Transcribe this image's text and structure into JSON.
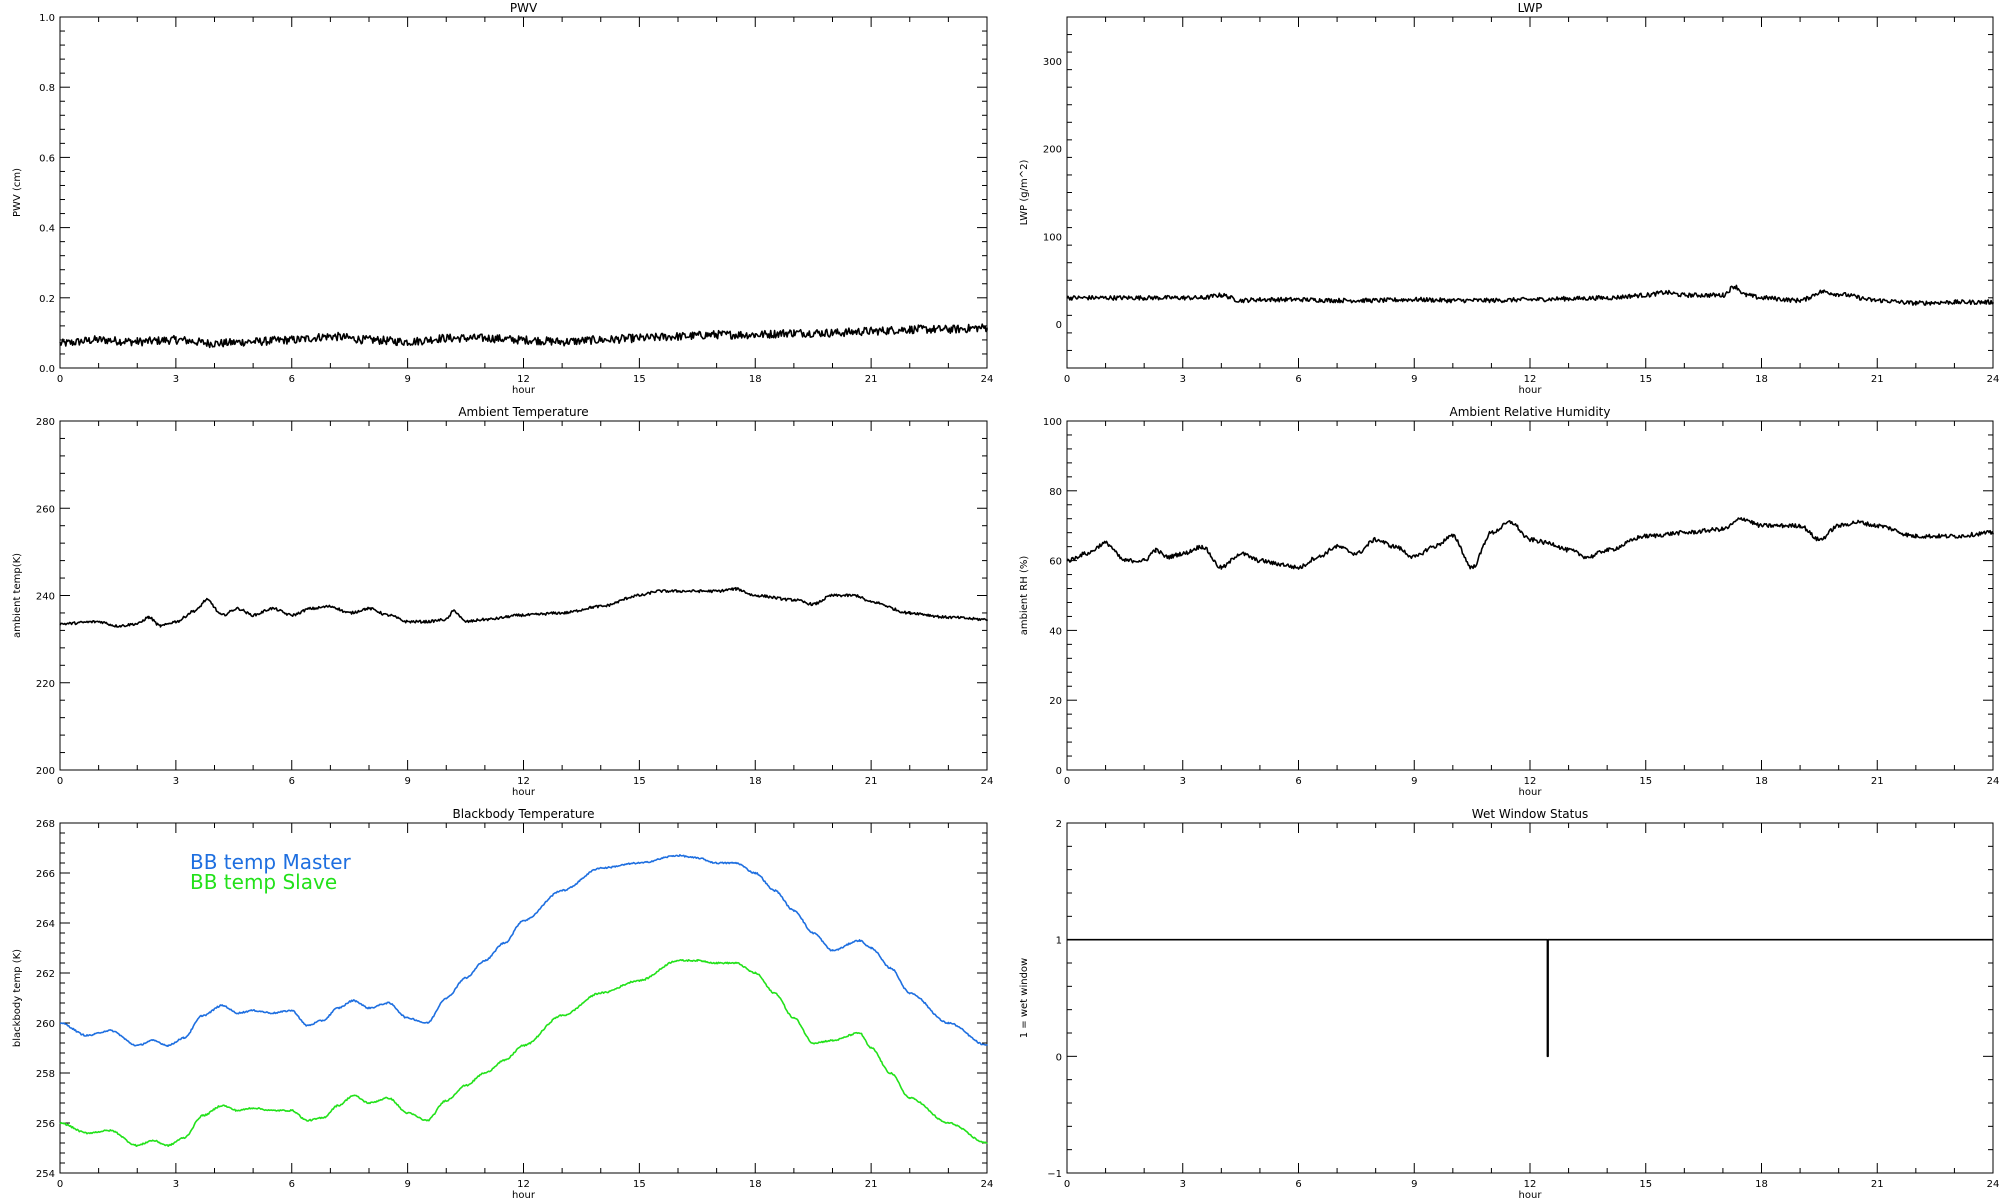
{
  "chart_data": [
    {
      "type": "line",
      "title": "PWV",
      "xlabel": "hour",
      "ylabel": "PWV (cm)",
      "xlim": [
        0,
        24
      ],
      "ylim": [
        0.0,
        1.0
      ],
      "xticks": [
        "0",
        "3",
        "6",
        "9",
        "12",
        "15",
        "18",
        "21",
        "24"
      ],
      "yticks": [
        "0.0",
        "0.2",
        "0.4",
        "0.6",
        "0.8",
        "1.0"
      ],
      "ytick_values": [
        0.0,
        0.2,
        0.4,
        0.6,
        0.8,
        1.0
      ],
      "series": [
        {
          "color": "#000000",
          "x": [
            0,
            1,
            2,
            3,
            4,
            5,
            6,
            7,
            8,
            9,
            10,
            11,
            12,
            13,
            14,
            15,
            16,
            17,
            18,
            19,
            20,
            21,
            22,
            23,
            24
          ],
          "y": [
            0.07,
            0.08,
            0.075,
            0.08,
            0.07,
            0.075,
            0.08,
            0.09,
            0.08,
            0.075,
            0.085,
            0.085,
            0.08,
            0.075,
            0.08,
            0.085,
            0.09,
            0.095,
            0.095,
            0.1,
            0.1,
            0.105,
            0.11,
            0.11,
            0.115
          ],
          "noise": 0.012
        }
      ]
    },
    {
      "type": "line",
      "title": "LWP",
      "xlabel": "hour",
      "ylabel": "LWP (g/m^2)",
      "xlim": [
        0,
        24
      ],
      "ylim": [
        -50,
        350
      ],
      "xticks": [
        "0",
        "3",
        "6",
        "9",
        "12",
        "15",
        "18",
        "21",
        "24"
      ],
      "yticks": [
        "0",
        "100",
        "200",
        "300"
      ],
      "ytick_values": [
        0,
        100,
        200,
        300
      ],
      "series": [
        {
          "color": "#000000",
          "x": [
            0,
            1,
            2,
            3,
            3.5,
            4,
            4.5,
            5,
            6,
            7,
            8,
            9,
            10,
            11,
            12,
            13,
            14,
            15,
            15.5,
            16,
            17,
            17.3,
            17.6,
            18,
            19,
            19.6,
            20,
            21,
            22,
            23,
            24
          ],
          "y": [
            30,
            30,
            30,
            30,
            30,
            33,
            27,
            28,
            28,
            27,
            27,
            28,
            27,
            27,
            28,
            29,
            30,
            33,
            36,
            33,
            33,
            43,
            33,
            30,
            27,
            37,
            34,
            27,
            24,
            25,
            25
          ],
          "noise": 2.5
        }
      ]
    },
    {
      "type": "line",
      "title": "Ambient Temperature",
      "xlabel": "hour",
      "ylabel": "ambient temp(K)",
      "xlim": [
        0,
        24
      ],
      "ylim": [
        200,
        280
      ],
      "xticks": [
        "0",
        "3",
        "6",
        "9",
        "12",
        "15",
        "18",
        "21",
        "24"
      ],
      "yticks": [
        "200",
        "220",
        "240",
        "260",
        "280"
      ],
      "ytick_values": [
        200,
        220,
        240,
        260,
        280
      ],
      "series": [
        {
          "color": "#000000",
          "x": [
            0,
            1,
            1.5,
            2,
            2.3,
            2.6,
            3,
            3.5,
            3.8,
            4.2,
            4.6,
            5,
            5.5,
            6,
            6.5,
            7,
            7.5,
            8,
            8.5,
            9,
            9.5,
            10,
            10.2,
            10.5,
            11,
            12,
            13,
            14,
            15,
            15.5,
            16,
            17,
            17.5,
            18,
            19,
            19.5,
            20,
            20.6,
            21,
            22,
            23,
            24
          ],
          "y": [
            233.5,
            234,
            233,
            233.5,
            235,
            233,
            234,
            236.5,
            239,
            235.5,
            237,
            235.5,
            237,
            235.5,
            237,
            237.5,
            236,
            237,
            235.5,
            234,
            234,
            234.5,
            236.5,
            234,
            234.5,
            235.5,
            236,
            237.5,
            240,
            241,
            241,
            241,
            241.5,
            240,
            239,
            238,
            240,
            240,
            238.5,
            236,
            235,
            234.5
          ],
          "noise": 0.3
        }
      ]
    },
    {
      "type": "line",
      "title": "Ambient Relative Humidity",
      "xlabel": "hour",
      "ylabel": "ambient RH (%)",
      "xlim": [
        0,
        24
      ],
      "ylim": [
        0,
        100
      ],
      "xticks": [
        "0",
        "3",
        "6",
        "9",
        "12",
        "15",
        "18",
        "21",
        "24"
      ],
      "yticks": [
        "0",
        "20",
        "40",
        "60",
        "80",
        "100"
      ],
      "ytick_values": [
        0,
        20,
        40,
        60,
        80,
        100
      ],
      "series": [
        {
          "color": "#000000",
          "x": [
            0,
            0.5,
            1,
            1.5,
            2,
            2.3,
            2.6,
            3,
            3.5,
            4,
            4.5,
            5,
            5.5,
            6,
            6.5,
            7,
            7.5,
            8,
            8.5,
            9,
            9.5,
            10,
            10.5,
            11,
            11.5,
            12,
            12.5,
            13,
            13.5,
            14,
            15,
            16,
            17,
            17.5,
            18,
            19,
            19.5,
            20,
            20.5,
            21,
            22,
            23,
            24
          ],
          "y": [
            60,
            62,
            65,
            60,
            60,
            63,
            61,
            62,
            64,
            58,
            62,
            60,
            59,
            58,
            61,
            64,
            62,
            66,
            64,
            61,
            64,
            67,
            58,
            68,
            71,
            66,
            65,
            63,
            61,
            63,
            67,
            68,
            69,
            72,
            70,
            70,
            66,
            70,
            71,
            70,
            67,
            67,
            68
          ],
          "noise": 0.6
        }
      ]
    },
    {
      "type": "line",
      "title": "Blackbody Temperature",
      "xlabel": "hour",
      "ylabel": "blackbody temp (K)",
      "xlim": [
        0,
        24
      ],
      "ylim": [
        254,
        268
      ],
      "xticks": [
        "0",
        "3",
        "6",
        "9",
        "12",
        "15",
        "18",
        "21",
        "24"
      ],
      "yticks": [
        "254",
        "256",
        "258",
        "260",
        "262",
        "264",
        "266",
        "268"
      ],
      "ytick_values": [
        254,
        256,
        258,
        260,
        262,
        264,
        266,
        268
      ],
      "series": [
        {
          "name": "BB temp Master",
          "color": "#1e6fe0",
          "x": [
            0,
            0.7,
            1.3,
            2,
            2.4,
            2.8,
            3.2,
            3.7,
            4.2,
            4.6,
            5,
            5.5,
            6,
            6.4,
            6.8,
            7.2,
            7.6,
            8,
            8.5,
            9,
            9.5,
            10,
            10.5,
            11,
            11.5,
            12,
            13,
            14,
            15,
            16,
            16.5,
            17,
            17.5,
            18,
            18.5,
            19,
            19.5,
            20,
            20.7,
            21,
            21.5,
            22,
            23,
            24
          ],
          "y": [
            260,
            259.5,
            259.7,
            259.1,
            259.3,
            259.1,
            259.4,
            260.3,
            260.7,
            260.4,
            260.5,
            260.4,
            260.5,
            259.9,
            260.1,
            260.6,
            260.9,
            260.6,
            260.8,
            260.2,
            260.0,
            261.0,
            261.8,
            262.5,
            263.2,
            264.1,
            265.3,
            266.2,
            266.4,
            266.7,
            266.6,
            266.4,
            266.4,
            266.0,
            265.3,
            264.5,
            263.6,
            262.9,
            263.3,
            263.0,
            262.2,
            261.2,
            260.0,
            259.1
          ],
          "noise": 0.03
        },
        {
          "name": "BB temp Slave",
          "color": "#22e11a",
          "x": [
            0,
            0.7,
            1.3,
            2,
            2.4,
            2.8,
            3.2,
            3.7,
            4.2,
            4.6,
            5,
            5.5,
            6,
            6.4,
            6.8,
            7.2,
            7.6,
            8,
            8.5,
            9,
            9.5,
            10,
            10.5,
            11,
            11.5,
            12,
            13,
            14,
            15,
            16,
            16.5,
            17,
            17.5,
            18,
            18.5,
            19,
            19.5,
            20,
            20.7,
            21,
            21.5,
            22,
            23,
            24
          ],
          "y": [
            256,
            255.6,
            255.7,
            255.1,
            255.3,
            255.1,
            255.4,
            256.3,
            256.7,
            256.5,
            256.6,
            256.5,
            256.5,
            256.1,
            256.2,
            256.7,
            257.1,
            256.8,
            257.0,
            256.4,
            256.1,
            256.9,
            257.5,
            258.0,
            258.5,
            259.1,
            260.3,
            261.2,
            261.7,
            262.5,
            262.5,
            262.4,
            262.4,
            262.0,
            261.2,
            260.2,
            259.2,
            259.3,
            259.6,
            259.0,
            258.0,
            257.0,
            256.0,
            255.2
          ],
          "noise": 0.03
        }
      ]
    },
    {
      "type": "line",
      "title": "Wet Window Status",
      "xlabel": "hour",
      "ylabel": "1 = wet window",
      "xlim": [
        0,
        24
      ],
      "ylim": [
        -1,
        2
      ],
      "xticks": [
        "0",
        "3",
        "6",
        "9",
        "12",
        "15",
        "18",
        "21",
        "24"
      ],
      "yticks": [
        "−1",
        "0",
        "1",
        "2"
      ],
      "ytick_values": [
        -1,
        0,
        1,
        2
      ],
      "series": [
        {
          "color": "#000000",
          "x": [
            0,
            12.45,
            12.45,
            12.47,
            12.47,
            24
          ],
          "y": [
            1,
            1,
            0,
            0,
            1,
            1
          ],
          "noise": 0
        }
      ]
    }
  ]
}
